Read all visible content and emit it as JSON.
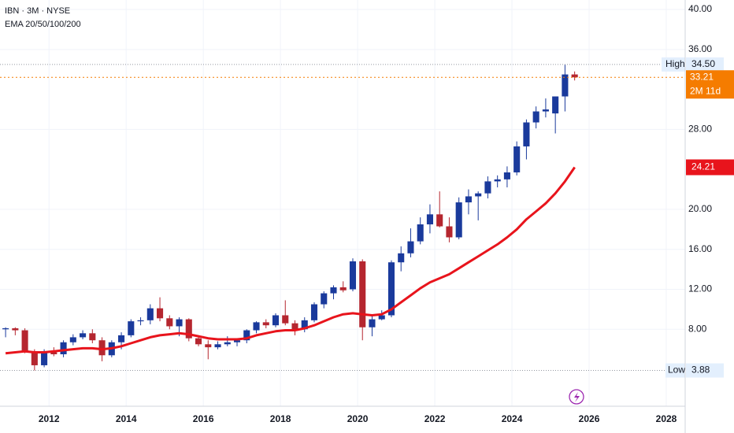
{
  "chart_data": {
    "type": "candlestick",
    "title": "IBN · 3M · NYSE",
    "subtitle": "EMA 20/50/100/200",
    "x": [
      2010.875,
      2011.125,
      2011.375,
      2011.625,
      2011.875,
      2012.125,
      2012.375,
      2012.625,
      2012.875,
      2013.125,
      2013.375,
      2013.625,
      2013.875,
      2014.125,
      2014.375,
      2014.625,
      2014.875,
      2015.125,
      2015.375,
      2015.625,
      2015.875,
      2016.125,
      2016.375,
      2016.625,
      2016.875,
      2017.125,
      2017.375,
      2017.625,
      2017.875,
      2018.125,
      2018.375,
      2018.625,
      2018.875,
      2019.125,
      2019.375,
      2019.625,
      2019.875,
      2020.125,
      2020.375,
      2020.625,
      2020.875,
      2021.125,
      2021.375,
      2021.625,
      2021.875,
      2022.125,
      2022.375,
      2022.625,
      2022.875,
      2023.125,
      2023.375,
      2023.625,
      2023.875,
      2024.125,
      2024.375,
      2024.625,
      2024.875,
      2025.125,
      2025.375,
      2025.625
    ],
    "open": [
      8.0,
      8.1,
      7.9,
      5.8,
      4.4,
      5.7,
      5.5,
      6.7,
      7.2,
      7.6,
      6.9,
      5.4,
      6.7,
      7.4,
      8.8,
      8.9,
      10.1,
      9.1,
      8.3,
      9.0,
      7.1,
      6.5,
      6.2,
      6.5,
      6.7,
      6.9,
      7.9,
      8.7,
      8.4,
      9.4,
      8.6,
      8.0,
      8.9,
      10.5,
      11.6,
      12.2,
      12.0,
      14.8,
      8.2,
      9.0,
      9.4,
      14.7,
      15.6,
      16.8,
      18.5,
      19.5,
      18.3,
      17.2,
      20.7,
      21.3,
      21.6,
      22.8,
      23.0,
      23.7,
      26.3,
      28.7,
      29.8,
      29.6,
      31.3,
      33.5
    ],
    "high": [
      8.2,
      8.2,
      8.1,
      6.0,
      6.0,
      6.2,
      6.9,
      7.5,
      7.9,
      8.0,
      7.2,
      6.9,
      7.7,
      9.0,
      9.2,
      10.5,
      11.2,
      9.4,
      9.2,
      9.1,
      7.3,
      6.9,
      6.8,
      7.3,
      7.1,
      8.0,
      8.8,
      9.0,
      9.6,
      10.9,
      8.9,
      9.2,
      10.7,
      11.8,
      12.4,
      12.8,
      15.1,
      15.0,
      9.3,
      9.9,
      14.9,
      16.3,
      18.1,
      19.2,
      20.5,
      21.8,
      19.2,
      21.2,
      22.0,
      21.8,
      23.3,
      23.4,
      24.3,
      26.8,
      29.0,
      30.3,
      31.1,
      31.3,
      34.5,
      33.8
    ],
    "low": [
      7.2,
      7.4,
      5.6,
      3.88,
      4.2,
      5.3,
      5.2,
      6.4,
      7.0,
      6.6,
      4.8,
      5.2,
      6.0,
      7.2,
      8.4,
      8.5,
      8.8,
      8.0,
      7.3,
      6.8,
      6.3,
      5.0,
      6.0,
      6.3,
      6.3,
      6.6,
      7.6,
      8.1,
      8.2,
      8.4,
      7.4,
      7.7,
      8.7,
      10.1,
      11.0,
      11.7,
      11.8,
      6.9,
      7.3,
      8.9,
      9.2,
      13.8,
      15.2,
      16.5,
      17.6,
      18.2,
      16.7,
      17.0,
      19.5,
      18.9,
      21.1,
      22.2,
      22.2,
      23.4,
      25.0,
      28.1,
      29.2,
      27.6,
      29.8,
      32.9
    ],
    "close": [
      8.1,
      7.9,
      5.8,
      4.4,
      5.7,
      5.5,
      6.7,
      7.2,
      7.6,
      6.9,
      5.4,
      6.7,
      7.4,
      8.8,
      8.9,
      10.1,
      9.1,
      8.3,
      9.0,
      7.1,
      6.5,
      6.2,
      6.5,
      6.7,
      6.9,
      7.9,
      8.7,
      8.4,
      9.4,
      8.6,
      8.0,
      8.9,
      10.5,
      11.6,
      12.2,
      11.9,
      14.8,
      8.2,
      9.0,
      9.4,
      14.7,
      15.6,
      16.8,
      18.5,
      19.5,
      18.3,
      17.2,
      20.7,
      21.3,
      21.6,
      22.8,
      23.0,
      23.7,
      26.3,
      28.7,
      29.8,
      30.0,
      31.3,
      33.5,
      33.21
    ],
    "up_color": "#1a3a9c",
    "down_color": "#b5262f",
    "ema": {
      "color": "#e8141c",
      "values": [
        5.6,
        5.7,
        5.8,
        5.7,
        5.7,
        5.8,
        5.9,
        6.0,
        6.1,
        6.1,
        6.0,
        6.1,
        6.3,
        6.6,
        6.9,
        7.2,
        7.4,
        7.5,
        7.6,
        7.5,
        7.3,
        7.1,
        7.0,
        7.0,
        7.0,
        7.1,
        7.4,
        7.6,
        7.8,
        7.9,
        7.9,
        8.1,
        8.4,
        8.8,
        9.2,
        9.5,
        9.6,
        9.5,
        9.4,
        9.5,
        10.0,
        10.7,
        11.4,
        12.1,
        12.7,
        13.1,
        13.5,
        14.1,
        14.7,
        15.3,
        15.9,
        16.5,
        17.2,
        18.0,
        19.0,
        19.8,
        20.6,
        21.6,
        22.8,
        24.21
      ]
    },
    "high_marker": {
      "label": "High",
      "value": 34.5,
      "value_label": "34.50"
    },
    "low_marker": {
      "label": "Low",
      "value": 3.88
    },
    "last_price": {
      "color": "#f57c00",
      "countdown": "2M 11d"
    },
    "xlim": [
      2010.73,
      2028.49
    ],
    "xticks": [
      2012,
      2014,
      2016,
      2018,
      2020,
      2022,
      2024,
      2026,
      2028
    ],
    "ylim": [
      0.3,
      40.95
    ],
    "yticks": [
      {
        "value": 8,
        "label": "8.00"
      },
      {
        "value": 12,
        "label": "12.00"
      },
      {
        "value": 16,
        "label": "16.00"
      },
      {
        "value": 20,
        "label": "20.00"
      },
      {
        "value": 28,
        "label": "28.00"
      },
      {
        "value": 36,
        "label": "36.00"
      },
      {
        "value": 40,
        "label": "40.00"
      }
    ],
    "grid": true
  }
}
